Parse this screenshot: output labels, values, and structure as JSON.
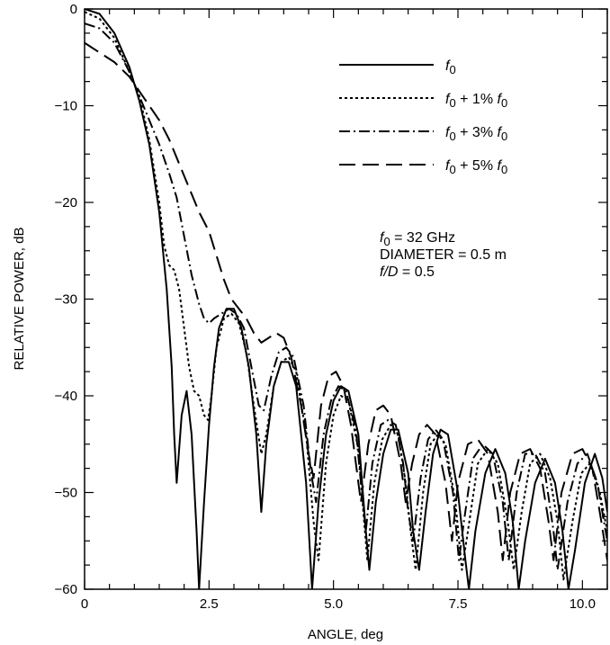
{
  "chart_data": {
    "type": "line",
    "title": "",
    "xlabel": "ANGLE, deg",
    "ylabel": "RELATIVE POWER, dB",
    "xlim": [
      0,
      10.5
    ],
    "ylim": [
      -60,
      0
    ],
    "xticks": [
      {
        "value": 0,
        "label": "0"
      },
      {
        "value": 2.5,
        "label": "2.5"
      },
      {
        "value": 5.0,
        "label": "5.0"
      },
      {
        "value": 7.5,
        "label": "7.5"
      },
      {
        "value": 10.0,
        "label": "10.0"
      }
    ],
    "yticks": [
      {
        "value": 0,
        "label": "0"
      },
      {
        "value": -10,
        "label": "−10"
      },
      {
        "value": -20,
        "label": "−20"
      },
      {
        "value": -30,
        "label": "−30"
      },
      {
        "value": -40,
        "label": "−40"
      },
      {
        "value": -50,
        "label": "−50"
      },
      {
        "value": -60,
        "label": "−60"
      }
    ],
    "x_minor_step": 0.5,
    "y_minor_step": 2.5,
    "grid": false,
    "legend_position": "top-right",
    "series": [
      {
        "name": "f0",
        "legend": {
          "italic": "f",
          "sub": "0",
          "rest": ""
        },
        "dash": "solid",
        "points": [
          [
            0,
            0
          ],
          [
            0.3,
            -0.5
          ],
          [
            0.6,
            -2.5
          ],
          [
            0.9,
            -6
          ],
          [
            1.1,
            -9.5
          ],
          [
            1.3,
            -14
          ],
          [
            1.5,
            -21
          ],
          [
            1.65,
            -29
          ],
          [
            1.75,
            -37
          ],
          [
            1.8,
            -44
          ],
          [
            1.85,
            -49
          ],
          [
            1.95,
            -42
          ],
          [
            2.05,
            -39.5
          ],
          [
            2.15,
            -44
          ],
          [
            2.25,
            -54
          ],
          [
            2.3,
            -60
          ],
          [
            2.4,
            -51
          ],
          [
            2.5,
            -43
          ],
          [
            2.6,
            -37
          ],
          [
            2.7,
            -33
          ],
          [
            2.85,
            -31
          ],
          [
            3.0,
            -31
          ],
          [
            3.15,
            -33
          ],
          [
            3.3,
            -37
          ],
          [
            3.45,
            -44
          ],
          [
            3.55,
            -52
          ],
          [
            3.65,
            -45
          ],
          [
            3.8,
            -39
          ],
          [
            3.95,
            -36.5
          ],
          [
            4.1,
            -36.5
          ],
          [
            4.25,
            -39
          ],
          [
            4.45,
            -49
          ],
          [
            4.57,
            -60
          ],
          [
            4.7,
            -51
          ],
          [
            4.85,
            -44
          ],
          [
            5.0,
            -40.5
          ],
          [
            5.15,
            -39
          ],
          [
            5.3,
            -39.5
          ],
          [
            5.5,
            -44
          ],
          [
            5.65,
            -54
          ],
          [
            5.72,
            -58
          ],
          [
            5.85,
            -51
          ],
          [
            6.0,
            -46
          ],
          [
            6.15,
            -43.5
          ],
          [
            6.3,
            -43.5
          ],
          [
            6.5,
            -48
          ],
          [
            6.6,
            -54
          ],
          [
            6.72,
            -58
          ],
          [
            6.85,
            -52
          ],
          [
            7.0,
            -46
          ],
          [
            7.15,
            -43.5
          ],
          [
            7.3,
            -44
          ],
          [
            7.5,
            -50
          ],
          [
            7.65,
            -57
          ],
          [
            7.72,
            -60
          ],
          [
            7.85,
            -54
          ],
          [
            8.05,
            -48
          ],
          [
            8.25,
            -45.5
          ],
          [
            8.45,
            -48
          ],
          [
            8.6,
            -53
          ],
          [
            8.72,
            -60
          ],
          [
            8.85,
            -55
          ],
          [
            9.05,
            -49
          ],
          [
            9.25,
            -46.5
          ],
          [
            9.45,
            -49
          ],
          [
            9.6,
            -54
          ],
          [
            9.72,
            -60
          ],
          [
            9.85,
            -56
          ],
          [
            10.05,
            -49
          ],
          [
            10.25,
            -46
          ],
          [
            10.4,
            -48.5
          ],
          [
            10.5,
            -52
          ]
        ]
      },
      {
        "name": "f0 + 1% f0",
        "legend": {
          "italic": "f",
          "sub": "0",
          "rest": " + 1% ",
          "italic2": "f",
          "sub2": "0"
        },
        "dash": "3,3",
        "points": [
          [
            0,
            -0.3
          ],
          [
            0.3,
            -1
          ],
          [
            0.6,
            -3
          ],
          [
            0.9,
            -6.5
          ],
          [
            1.1,
            -9
          ],
          [
            1.3,
            -13.5
          ],
          [
            1.5,
            -20
          ],
          [
            1.6,
            -24.5
          ],
          [
            1.7,
            -26.5
          ],
          [
            1.8,
            -27
          ],
          [
            1.9,
            -29
          ],
          [
            2.0,
            -33
          ],
          [
            2.1,
            -37
          ],
          [
            2.2,
            -39.5
          ],
          [
            2.3,
            -40
          ],
          [
            2.4,
            -42
          ],
          [
            2.48,
            -42.5
          ],
          [
            2.55,
            -40
          ],
          [
            2.65,
            -35
          ],
          [
            2.8,
            -32
          ],
          [
            2.95,
            -31.5
          ],
          [
            3.1,
            -32.5
          ],
          [
            3.25,
            -35.5
          ],
          [
            3.4,
            -41
          ],
          [
            3.55,
            -46
          ],
          [
            3.65,
            -44
          ],
          [
            3.8,
            -39
          ],
          [
            3.95,
            -36.5
          ],
          [
            4.1,
            -36
          ],
          [
            4.25,
            -37.5
          ],
          [
            4.45,
            -44
          ],
          [
            4.6,
            -53
          ],
          [
            4.7,
            -57
          ],
          [
            4.85,
            -47
          ],
          [
            5.0,
            -42
          ],
          [
            5.15,
            -40
          ],
          [
            5.3,
            -40.5
          ],
          [
            5.5,
            -45.5
          ],
          [
            5.6,
            -52
          ],
          [
            5.68,
            -57
          ],
          [
            5.82,
            -49
          ],
          [
            5.98,
            -44.5
          ],
          [
            6.15,
            -43
          ],
          [
            6.3,
            -44
          ],
          [
            6.45,
            -49
          ],
          [
            6.55,
            -54
          ],
          [
            6.65,
            -58
          ],
          [
            6.8,
            -50
          ],
          [
            6.95,
            -45
          ],
          [
            7.1,
            -44
          ],
          [
            7.25,
            -45
          ],
          [
            7.45,
            -51
          ],
          [
            7.58,
            -58
          ],
          [
            7.7,
            -54
          ],
          [
            7.9,
            -47
          ],
          [
            8.1,
            -45.5
          ],
          [
            8.3,
            -47
          ],
          [
            8.5,
            -53
          ],
          [
            8.62,
            -58
          ],
          [
            8.78,
            -52
          ],
          [
            8.95,
            -47
          ],
          [
            9.15,
            -46
          ],
          [
            9.35,
            -48.5
          ],
          [
            9.5,
            -53
          ],
          [
            9.62,
            -59
          ],
          [
            9.8,
            -53
          ],
          [
            9.98,
            -48
          ],
          [
            10.15,
            -47
          ],
          [
            10.35,
            -50
          ],
          [
            10.5,
            -54
          ]
        ]
      },
      {
        "name": "f0 + 3% f0",
        "legend": {
          "italic": "f",
          "sub": "0",
          "rest": " + 3% ",
          "italic2": "f",
          "sub2": "0"
        },
        "dash": "12,4,2,4",
        "points": [
          [
            0,
            -1.5
          ],
          [
            0.3,
            -2
          ],
          [
            0.6,
            -3.5
          ],
          [
            0.9,
            -6.5
          ],
          [
            1.1,
            -9
          ],
          [
            1.3,
            -11.5
          ],
          [
            1.5,
            -14
          ],
          [
            1.7,
            -17
          ],
          [
            1.85,
            -19.5
          ],
          [
            2.0,
            -23.5
          ],
          [
            2.15,
            -27.5
          ],
          [
            2.3,
            -30.5
          ],
          [
            2.4,
            -32
          ],
          [
            2.5,
            -32.5
          ],
          [
            2.6,
            -32
          ],
          [
            2.75,
            -31.5
          ],
          [
            2.9,
            -31
          ],
          [
            3.05,
            -31.5
          ],
          [
            3.2,
            -33
          ],
          [
            3.35,
            -37
          ],
          [
            3.5,
            -41
          ],
          [
            3.6,
            -41.5
          ],
          [
            3.75,
            -38
          ],
          [
            3.9,
            -35.5
          ],
          [
            4.05,
            -35
          ],
          [
            4.2,
            -36
          ],
          [
            4.4,
            -41
          ],
          [
            4.55,
            -48
          ],
          [
            4.65,
            -51
          ],
          [
            4.8,
            -44
          ],
          [
            4.95,
            -40.5
          ],
          [
            5.1,
            -39
          ],
          [
            5.25,
            -39.5
          ],
          [
            5.45,
            -43.5
          ],
          [
            5.55,
            -49
          ],
          [
            5.65,
            -54
          ],
          [
            5.78,
            -47
          ],
          [
            5.95,
            -43
          ],
          [
            6.1,
            -42.5
          ],
          [
            6.25,
            -43
          ],
          [
            6.4,
            -47
          ],
          [
            6.5,
            -52
          ],
          [
            6.6,
            -55
          ],
          [
            6.75,
            -48.5
          ],
          [
            6.9,
            -44.5
          ],
          [
            7.05,
            -43.5
          ],
          [
            7.2,
            -44.5
          ],
          [
            7.4,
            -50
          ],
          [
            7.52,
            -57
          ],
          [
            7.62,
            -53
          ],
          [
            7.8,
            -46.5
          ],
          [
            8.0,
            -45
          ],
          [
            8.2,
            -46
          ],
          [
            8.4,
            -51
          ],
          [
            8.52,
            -57
          ],
          [
            8.68,
            -50
          ],
          [
            8.85,
            -46
          ],
          [
            9.05,
            -46
          ],
          [
            9.25,
            -48
          ],
          [
            9.42,
            -54
          ],
          [
            9.5,
            -58
          ],
          [
            9.7,
            -51
          ],
          [
            9.9,
            -47
          ],
          [
            10.1,
            -46
          ],
          [
            10.3,
            -49
          ],
          [
            10.5,
            -55
          ]
        ]
      },
      {
        "name": "f0 + 5% f0",
        "legend": {
          "italic": "f",
          "sub": "0",
          "rest": " + 5% ",
          "italic2": "f",
          "sub2": "0"
        },
        "dash": "18,8",
        "points": [
          [
            0,
            -3.5
          ],
          [
            0.3,
            -4.5
          ],
          [
            0.6,
            -5.5
          ],
          [
            0.9,
            -7
          ],
          [
            1.1,
            -8.5
          ],
          [
            1.3,
            -10
          ],
          [
            1.5,
            -11.5
          ],
          [
            1.7,
            -13.5
          ],
          [
            1.9,
            -16
          ],
          [
            2.1,
            -18.5
          ],
          [
            2.3,
            -21
          ],
          [
            2.5,
            -23
          ],
          [
            2.65,
            -25.5
          ],
          [
            2.8,
            -28
          ],
          [
            2.95,
            -30
          ],
          [
            3.1,
            -31
          ],
          [
            3.25,
            -32
          ],
          [
            3.4,
            -33.5
          ],
          [
            3.55,
            -34.5
          ],
          [
            3.7,
            -34
          ],
          [
            3.85,
            -33.5
          ],
          [
            4.0,
            -34
          ],
          [
            4.15,
            -36
          ],
          [
            4.35,
            -41
          ],
          [
            4.5,
            -46
          ],
          [
            4.6,
            -48.5
          ],
          [
            4.75,
            -41
          ],
          [
            4.9,
            -38
          ],
          [
            5.05,
            -37.5
          ],
          [
            5.2,
            -39
          ],
          [
            5.35,
            -43
          ],
          [
            5.45,
            -47
          ],
          [
            5.55,
            -51
          ],
          [
            5.7,
            -45
          ],
          [
            5.85,
            -41.5
          ],
          [
            6.0,
            -41
          ],
          [
            6.15,
            -42
          ],
          [
            6.35,
            -47
          ],
          [
            6.45,
            -51
          ],
          [
            6.58,
            -47
          ],
          [
            6.72,
            -44
          ],
          [
            6.88,
            -43
          ],
          [
            7.05,
            -44
          ],
          [
            7.25,
            -49
          ],
          [
            7.38,
            -55
          ],
          [
            7.5,
            -49
          ],
          [
            7.7,
            -45
          ],
          [
            7.9,
            -44.5
          ],
          [
            8.1,
            -46
          ],
          [
            8.3,
            -52
          ],
          [
            8.4,
            -57
          ],
          [
            8.55,
            -50
          ],
          [
            8.75,
            -46
          ],
          [
            8.95,
            -45.5
          ],
          [
            9.15,
            -47.5
          ],
          [
            9.32,
            -53
          ],
          [
            9.42,
            -57
          ],
          [
            9.58,
            -50
          ],
          [
            9.8,
            -46
          ],
          [
            10.0,
            -45.5
          ],
          [
            10.2,
            -47.5
          ],
          [
            10.38,
            -53
          ],
          [
            10.5,
            -57
          ]
        ]
      }
    ],
    "annotations": [
      {
        "italic": "f",
        "sub": "0",
        "rest": " = 32 GHz"
      },
      {
        "text": "DIAMETER = 0.5 m"
      },
      {
        "italic": "f/D",
        "rest": " = 0.5"
      }
    ]
  }
}
